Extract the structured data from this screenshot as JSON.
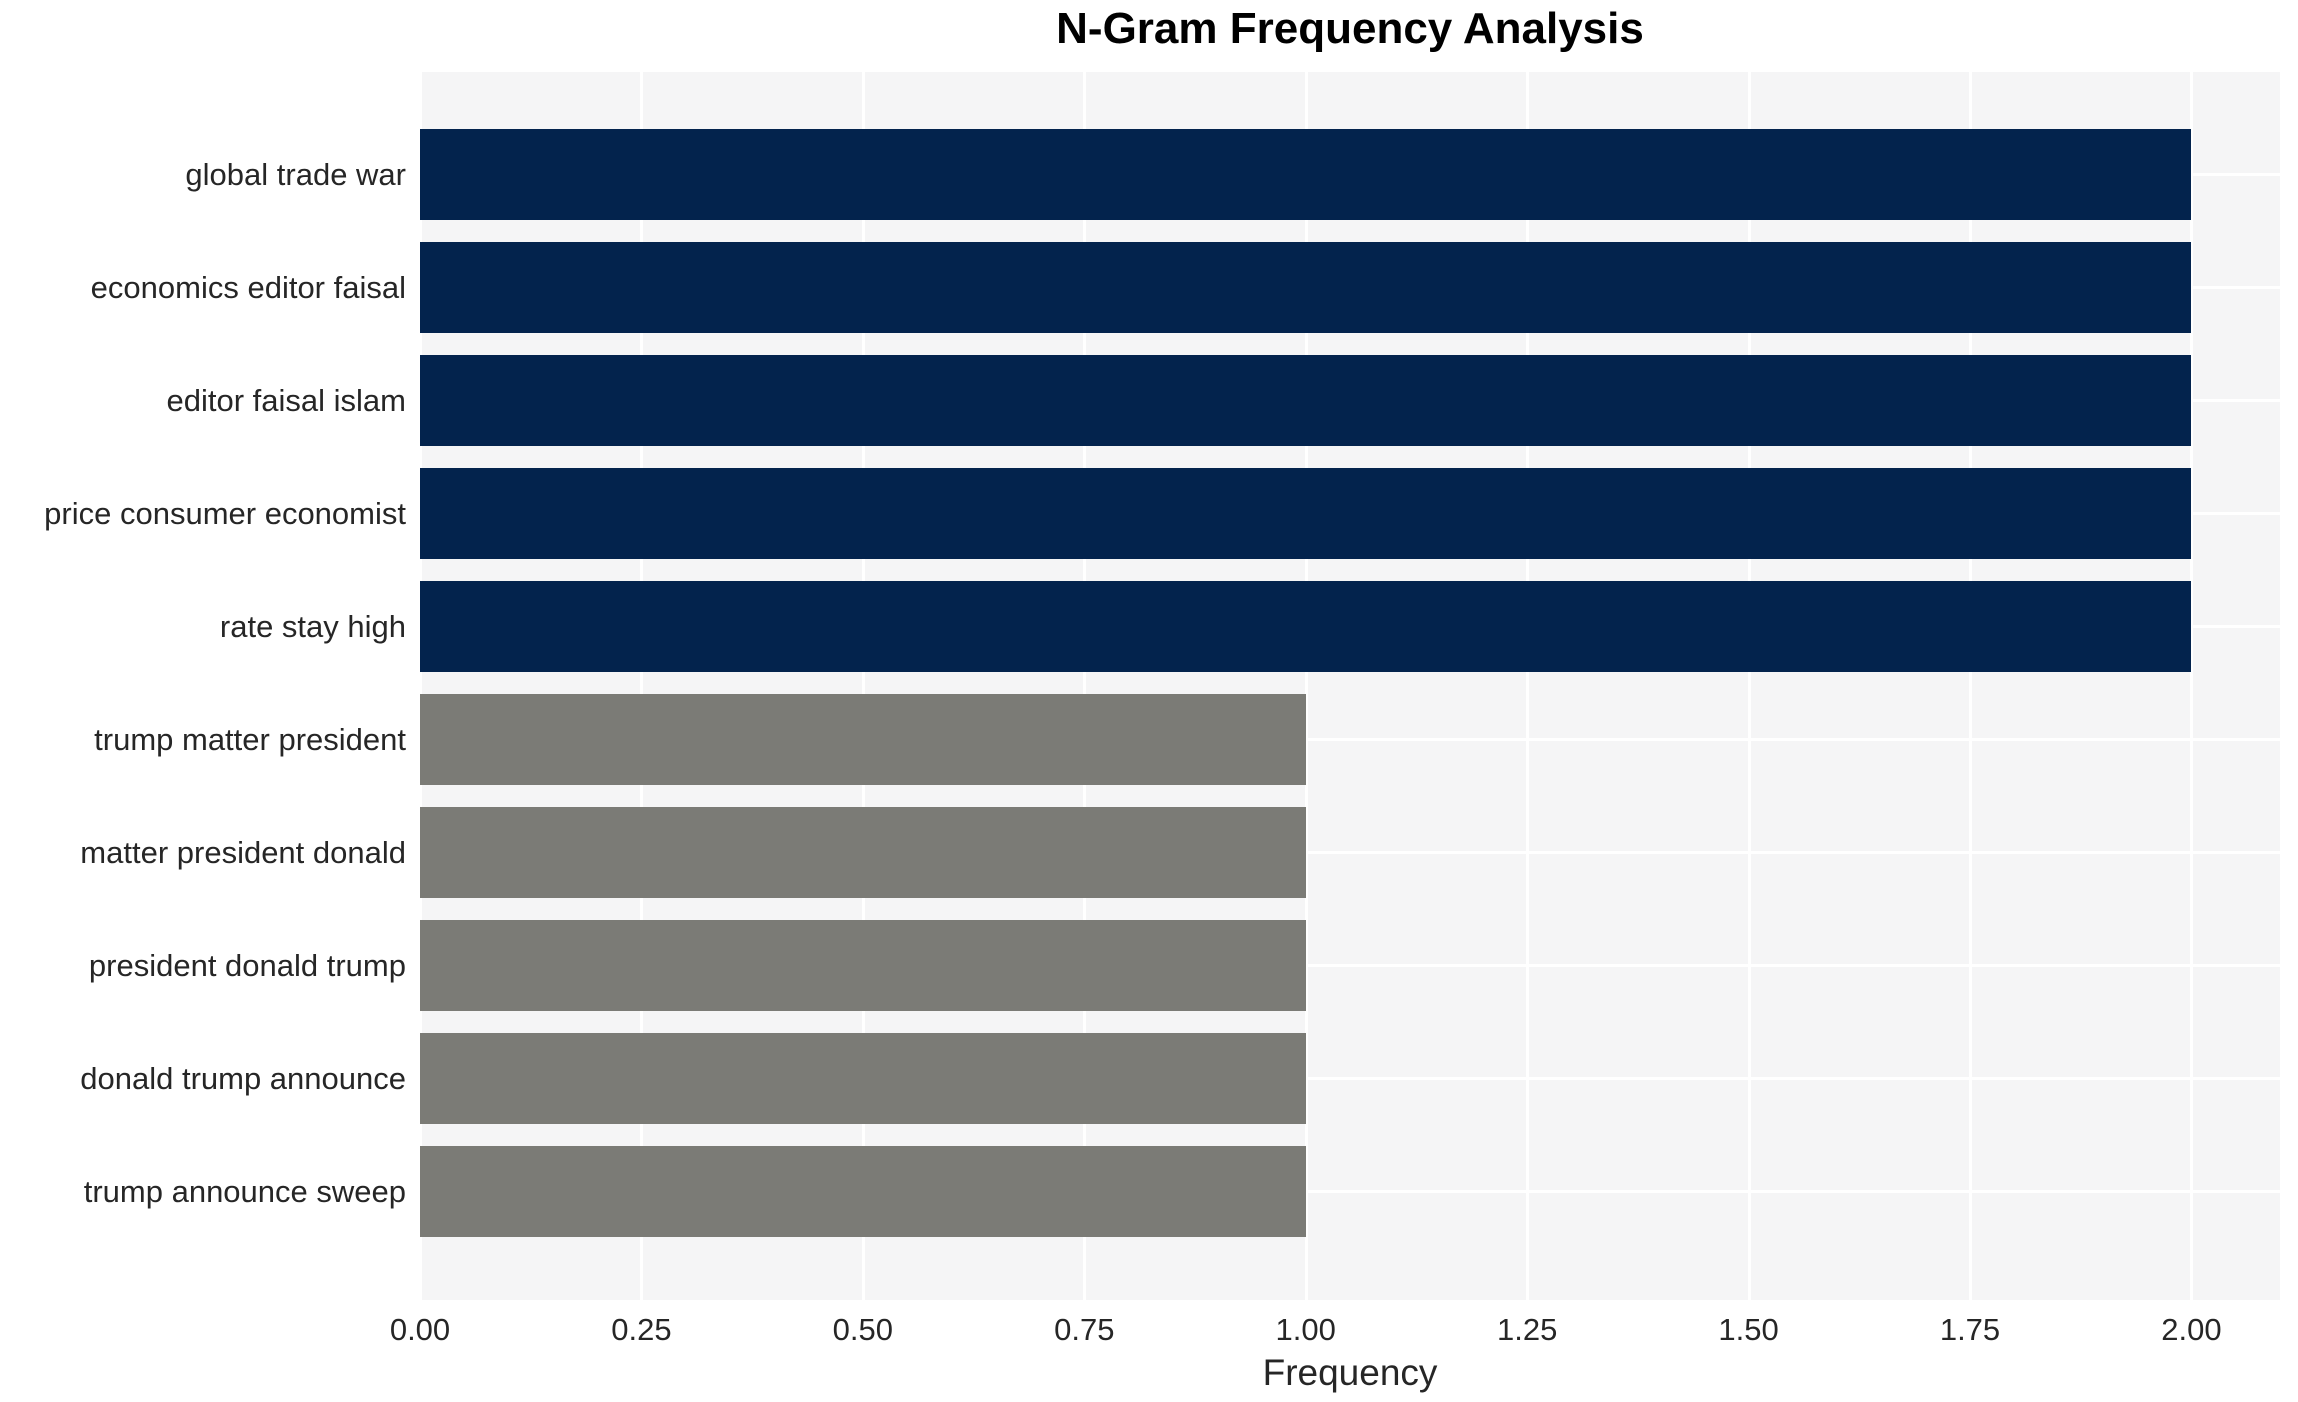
{
  "chart_data": {
    "type": "bar",
    "orientation": "horizontal",
    "title": "N-Gram Frequency Analysis",
    "xlabel": "Frequency",
    "ylabel": "",
    "categories": [
      "global trade war",
      "economics editor faisal",
      "editor faisal islam",
      "price consumer economist",
      "rate stay high",
      "trump matter president",
      "matter president donald",
      "president donald trump",
      "donald trump announce",
      "trump announce sweep"
    ],
    "values": [
      2,
      2,
      2,
      2,
      2,
      1,
      1,
      1,
      1,
      1
    ],
    "bar_colors": [
      "#03234d",
      "#03234d",
      "#03234d",
      "#03234d",
      "#03234d",
      "#7b7b76",
      "#7b7b76",
      "#7b7b76",
      "#7b7b76",
      "#7b7b76"
    ],
    "xticks": [
      0.0,
      0.25,
      0.5,
      0.75,
      1.0,
      1.25,
      1.5,
      1.75,
      2.0
    ],
    "xtick_labels": [
      "0.00",
      "0.25",
      "0.50",
      "0.75",
      "1.00",
      "1.25",
      "1.50",
      "1.75",
      "2.00"
    ],
    "xlim": [
      0,
      2.1
    ],
    "grid": true,
    "legend": false
  },
  "colors": {
    "navy_bar": "#03234d",
    "gray_bar": "#7b7b76",
    "plot_background": "#f5f5f6",
    "grid_color": "#ffffff",
    "tick_text": "#262626",
    "title_text": "#000000"
  }
}
